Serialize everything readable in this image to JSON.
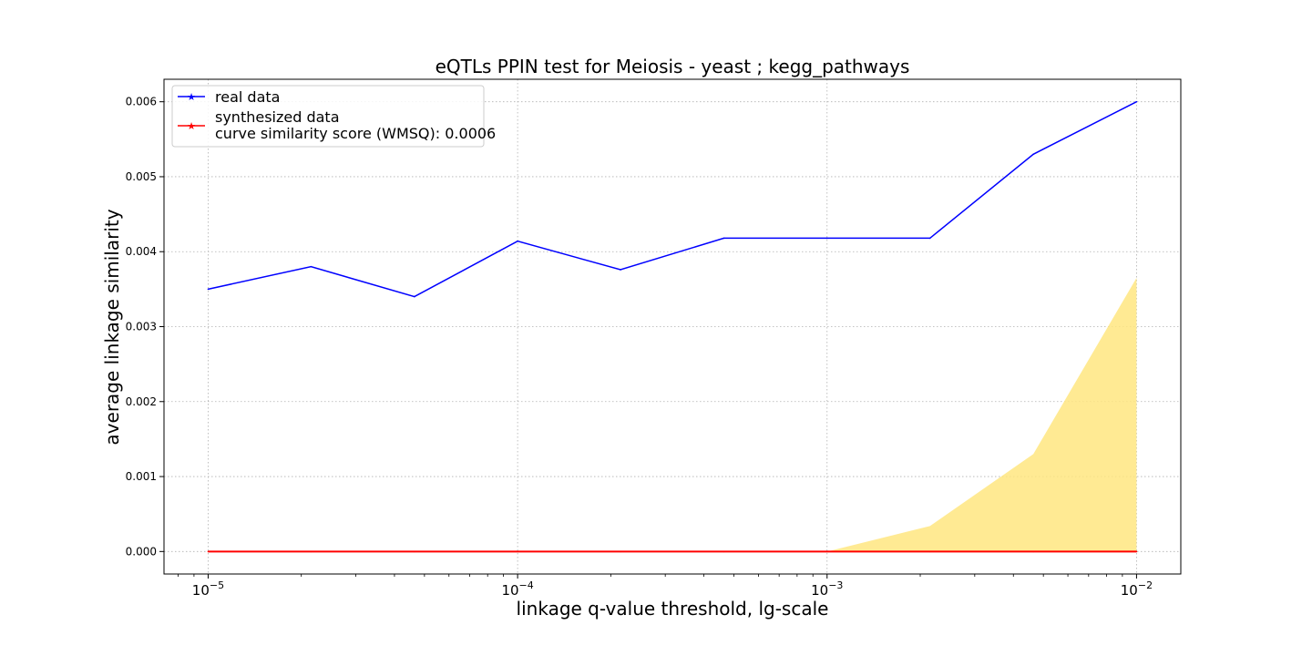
{
  "chart_data": {
    "type": "line",
    "title": "eQTLs PPIN test for Meiosis - yeast ; kegg_pathways",
    "xlabel": "linkage q-value threshold, lg-scale",
    "ylabel": "average linkage similarity",
    "x_scale": "log",
    "xlim": [
      7.2e-06,
      0.0139
    ],
    "ylim": [
      -0.0003,
      0.0063
    ],
    "grid": true,
    "legend_position": "upper-left",
    "x": [
      1e-05,
      2.15e-05,
      4.64e-05,
      0.0001,
      0.000215,
      0.000464,
      0.001,
      0.00215,
      0.00464,
      0.01
    ],
    "x_ticks": [
      {
        "value": 1e-05,
        "base": "10",
        "exp": "−5"
      },
      {
        "value": 0.0001,
        "base": "10",
        "exp": "−4"
      },
      {
        "value": 0.001,
        "base": "10",
        "exp": "−3"
      },
      {
        "value": 0.01,
        "base": "10",
        "exp": "−2"
      }
    ],
    "y_ticks": [
      "0.000",
      "0.001",
      "0.002",
      "0.003",
      "0.004",
      "0.005",
      "0.006"
    ],
    "series": [
      {
        "name": "real data",
        "color": "#0000ff",
        "values": [
          0.0035,
          0.0038,
          0.0034,
          0.00414,
          0.00376,
          0.00418,
          0.00418,
          0.00418,
          0.0053,
          0.006
        ]
      },
      {
        "name": "synthesized data",
        "color": "#ff0000",
        "values": [
          0,
          0,
          0,
          0,
          0,
          0,
          0,
          0,
          0,
          0
        ]
      }
    ],
    "band": {
      "color": "#ffe680",
      "lower": [
        0,
        0,
        0,
        0,
        0,
        0,
        0,
        0,
        0,
        0
      ],
      "upper": [
        0,
        0,
        0,
        0,
        0,
        0,
        0,
        0.00034,
        0.0013,
        0.00365
      ]
    },
    "legend_extra": "curve similarity score (WMSQ): 0.0006"
  }
}
